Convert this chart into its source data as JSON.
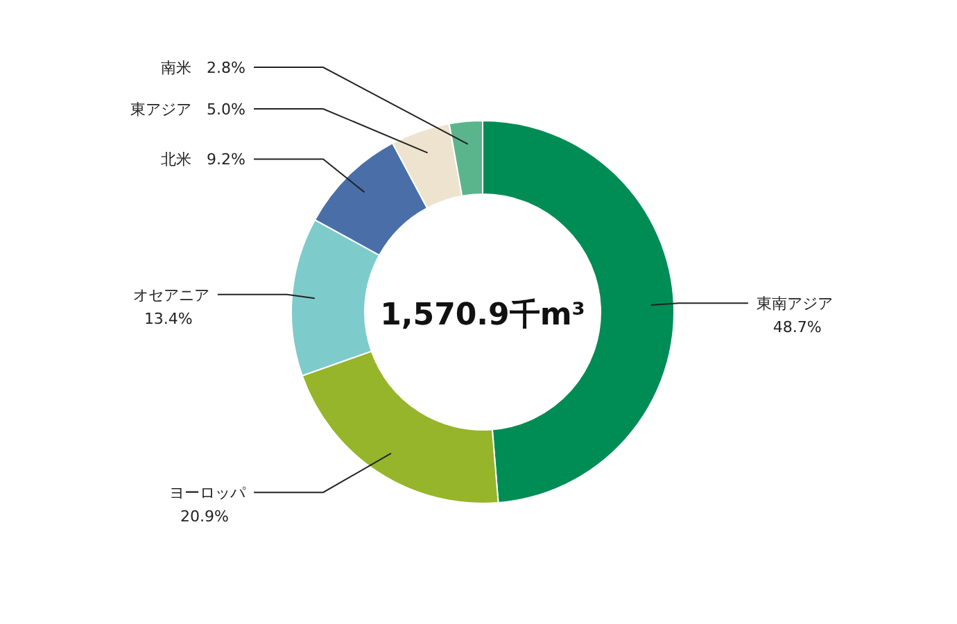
{
  "chart_data": {
    "type": "donut",
    "categories": [
      "東南アジア",
      "ヨーロッパ",
      "オセアニア",
      "北米",
      "東アジア",
      "南米"
    ],
    "values": [
      48.7,
      20.9,
      13.4,
      9.2,
      5.0,
      2.8
    ],
    "value_labels": [
      "48.7%",
      "20.9%",
      "13.4%",
      "9.2%",
      "5.0%",
      "2.8%"
    ],
    "colors": [
      "#008c55",
      "#96b52a",
      "#7ecbcc",
      "#4a6fa8",
      "#ede3cf",
      "#5bb58c"
    ],
    "annotations": [
      "1,570.9千m³"
    ]
  }
}
